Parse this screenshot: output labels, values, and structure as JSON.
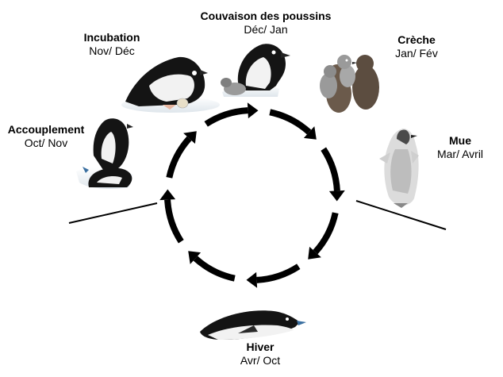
{
  "diagram": {
    "stages": [
      {
        "id": "couvaison",
        "title": "Couvaison des poussins",
        "months": "Déc/ Jan"
      },
      {
        "id": "creche",
        "title": "Crèche",
        "months": "Jan/ Fév"
      },
      {
        "id": "mue",
        "title": "Mue",
        "months": "Mar/ Avril"
      },
      {
        "id": "hiver",
        "title": "Hiver",
        "months": "Avr/ Oct"
      },
      {
        "id": "accouplement",
        "title": "Accouplement",
        "months": "Oct/ Nov"
      },
      {
        "id": "incubation",
        "title": "Incubation",
        "months": "Nov/ Déc"
      }
    ],
    "colors": {
      "arrow": "#000000",
      "penguin_back": "#141414",
      "penguin_belly": "#f2f2f2",
      "chick_down": "#6b5a4b",
      "chick_grey": "#9a9a9a",
      "egg": "#e8dfc8",
      "beak": "#3a6fa0"
    }
  }
}
